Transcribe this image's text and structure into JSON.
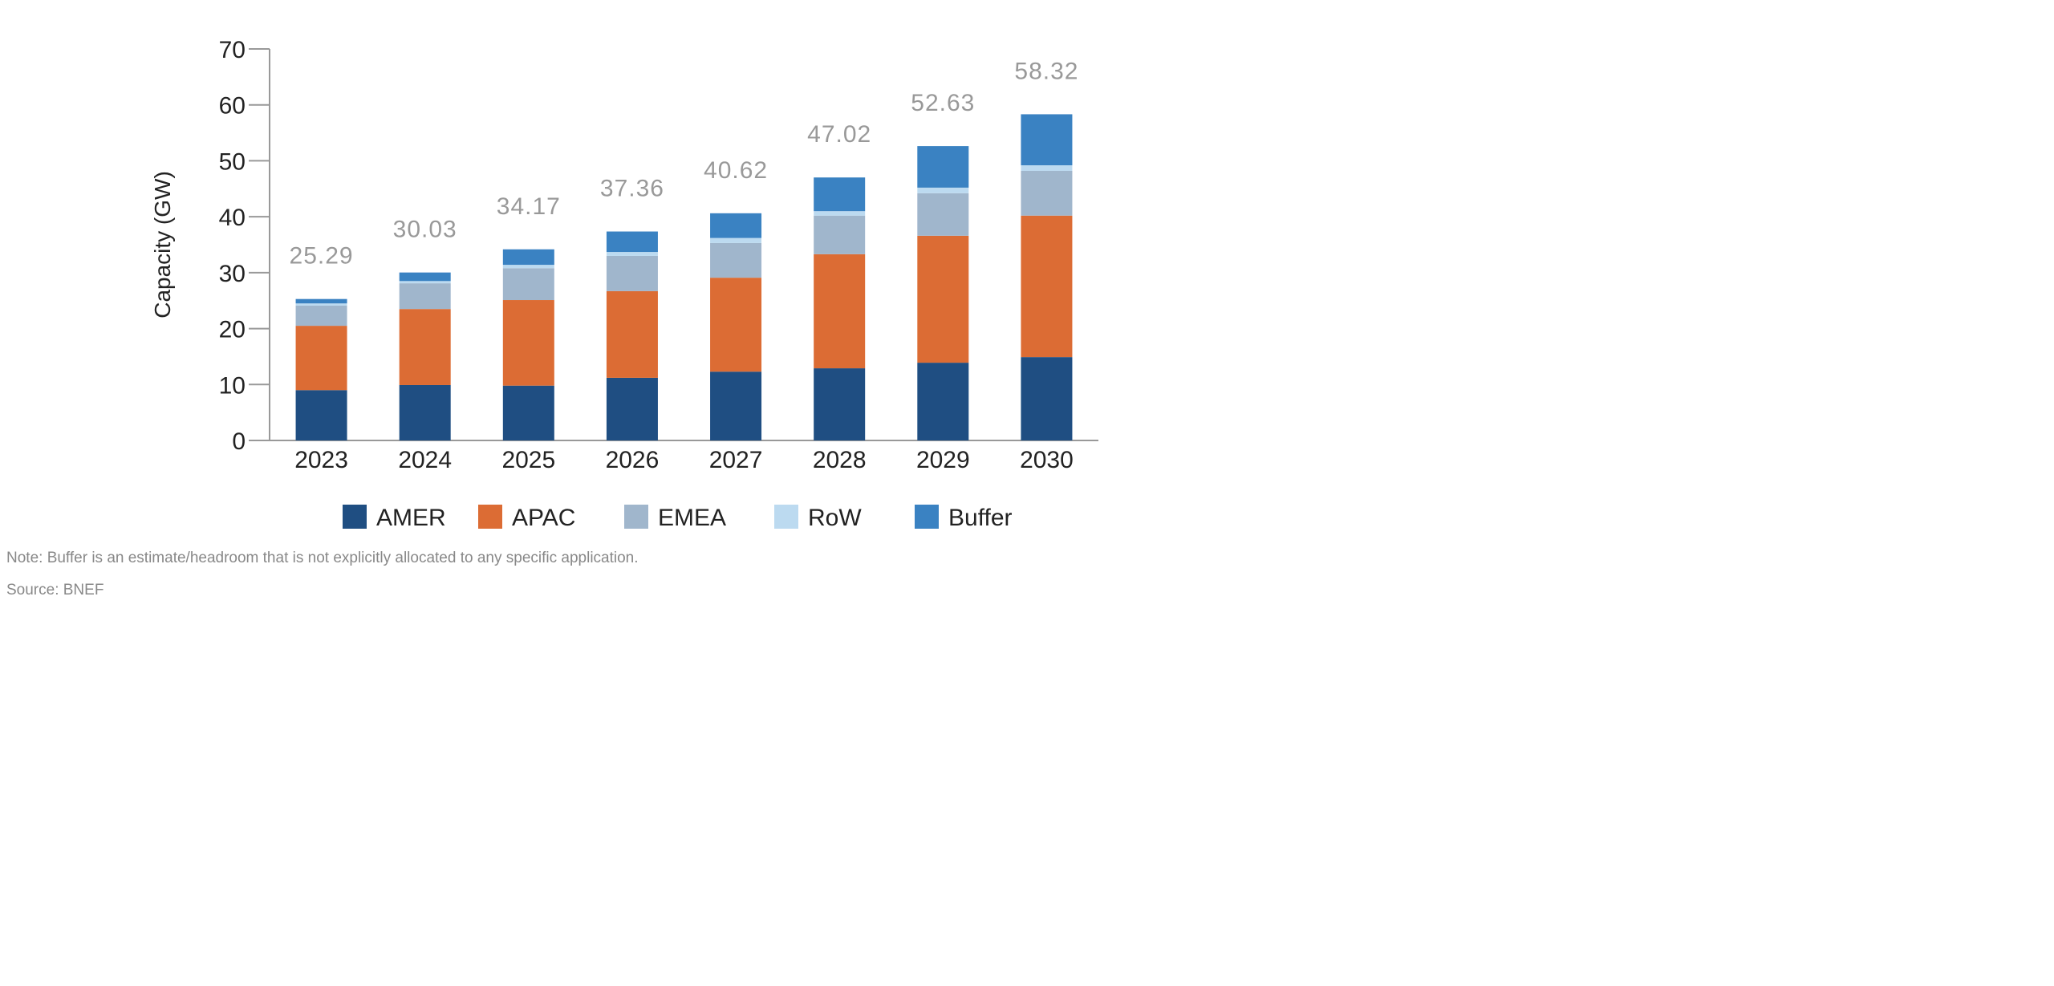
{
  "chart_data": {
    "type": "bar",
    "stacked": true,
    "ylabel": "Capacity (GW)",
    "ylim": [
      0,
      70
    ],
    "yticks": [
      0,
      10,
      20,
      30,
      40,
      50,
      60,
      70
    ],
    "categories": [
      "2023",
      "2024",
      "2025",
      "2026",
      "2027",
      "2028",
      "2029",
      "2030"
    ],
    "totals": [
      "25.29",
      "30.03",
      "34.17",
      "37.36",
      "40.62",
      "47.02",
      "52.63",
      "58.32"
    ],
    "series": [
      {
        "name": "AMER",
        "color": "#1f4e82",
        "values": [
          9.0,
          9.9,
          9.8,
          11.2,
          12.3,
          12.9,
          13.9,
          14.9
        ]
      },
      {
        "name": "APAC",
        "color": "#dc6c34",
        "values": [
          11.5,
          13.6,
          15.3,
          15.5,
          16.8,
          20.4,
          22.7,
          25.3
        ]
      },
      {
        "name": "EMEA",
        "color": "#a0b6cc",
        "values": [
          3.6,
          4.6,
          5.7,
          6.3,
          6.2,
          6.9,
          7.6,
          8.0
        ]
      },
      {
        "name": "RoW",
        "color": "#bcdaf0",
        "values": [
          0.4,
          0.4,
          0.6,
          0.7,
          0.9,
          0.8,
          1.0,
          1.0
        ]
      },
      {
        "name": "Buffer",
        "color": "#3a82c2",
        "values": [
          0.79,
          1.53,
          2.77,
          3.66,
          4.42,
          6.02,
          7.43,
          9.12
        ]
      }
    ],
    "grid": false,
    "legend": "bottom"
  },
  "footer": {
    "note": "Note: Buffer is an estimate/headroom that is not explicitly allocated to any specific application.",
    "source": "Source: BNEF"
  }
}
